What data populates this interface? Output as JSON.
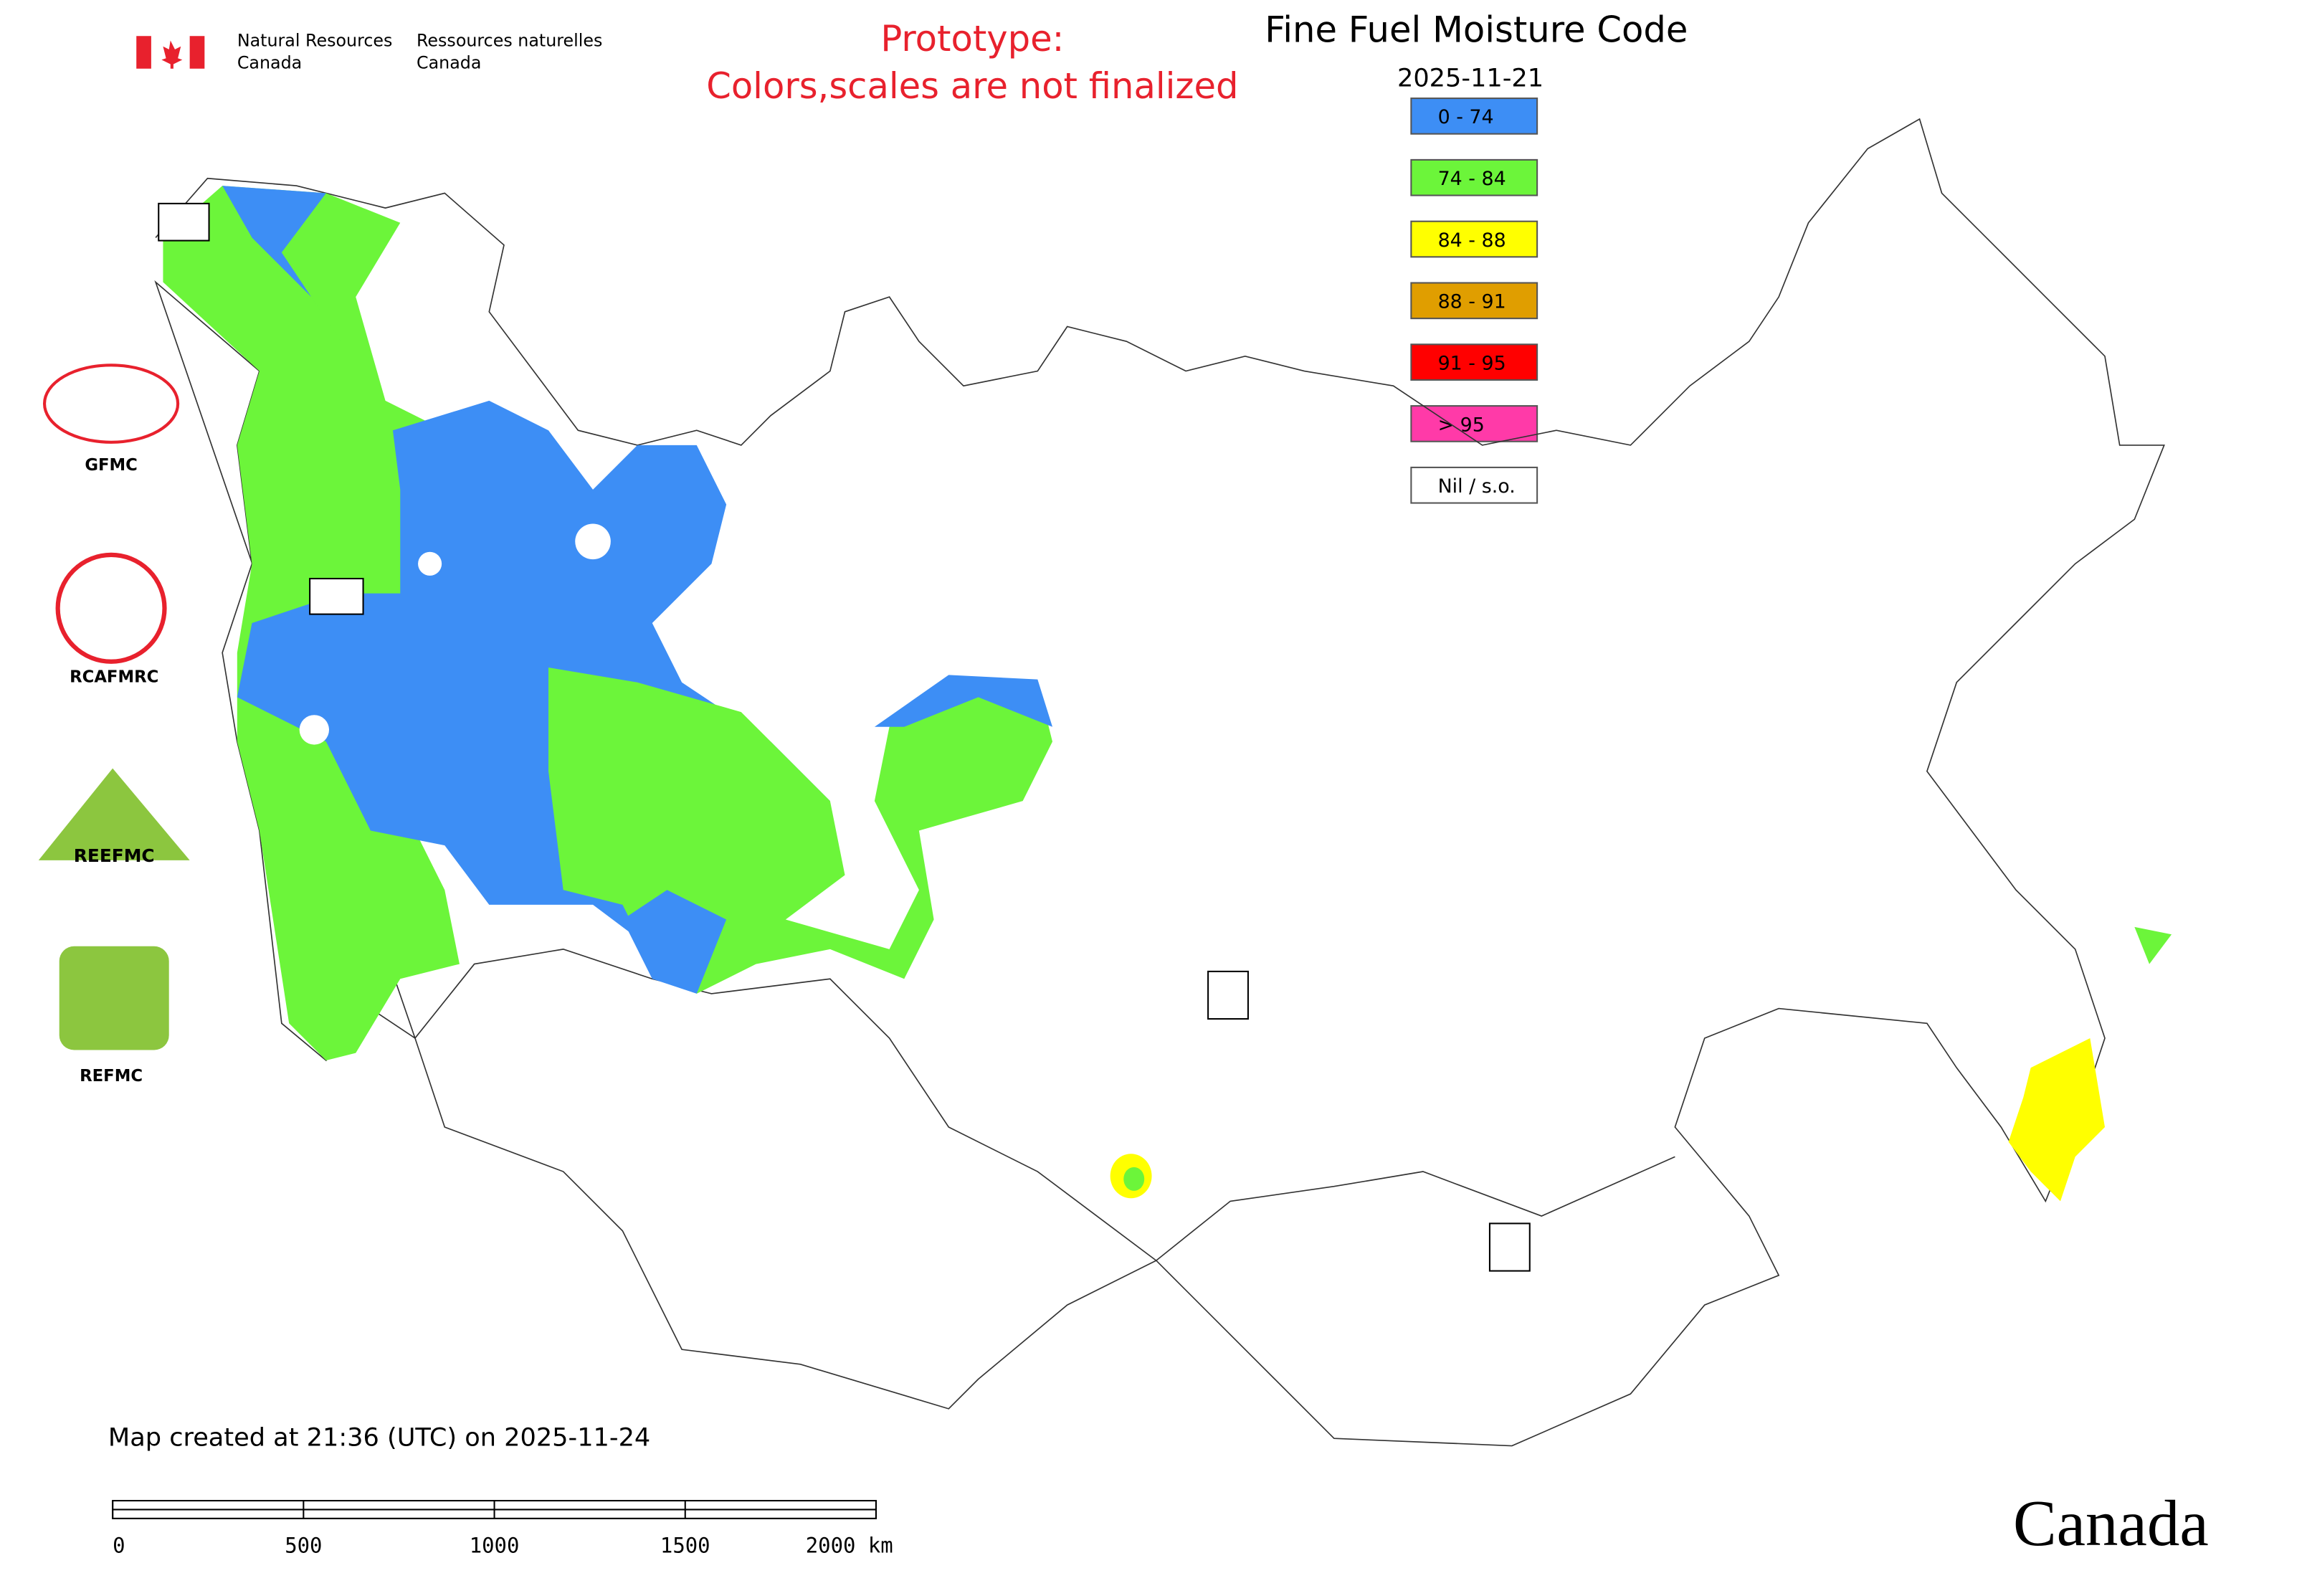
{
  "header": {
    "agency_en": [
      "Natural Resources",
      "Canada"
    ],
    "agency_fr": [
      "Ressources naturelles",
      "Canada"
    ],
    "notice": [
      "Prototype:",
      "Colors,scales are not finalized"
    ]
  },
  "map": {
    "title": "Fine Fuel Moisture Code",
    "date": "2025-11-21",
    "legend": [
      {
        "label": "0 - 74",
        "color": "#3d8ef5"
      },
      {
        "label": "74 - 84",
        "color": "#6cf53a"
      },
      {
        "label": "84 - 88",
        "color": "#ffff00"
      },
      {
        "label": "88 - 91",
        "color": "#e09e00"
      },
      {
        "label": "91 - 95",
        "color": "#ff0000"
      },
      {
        "label": "> 95",
        "color": "#ff3aa8"
      },
      {
        "label": "Nil / s.o.",
        "color": "#ffffff"
      }
    ],
    "created": "Map created at 21:36 (UTC) on 2025-11-24",
    "scale_labels": [
      "0",
      "500",
      "1000",
      "1500",
      "2000 km"
    ]
  },
  "logos": [
    "GFMC",
    "RCAFMRC",
    "REEFMC",
    "REFMC"
  ],
  "wordmark": "Canada"
}
